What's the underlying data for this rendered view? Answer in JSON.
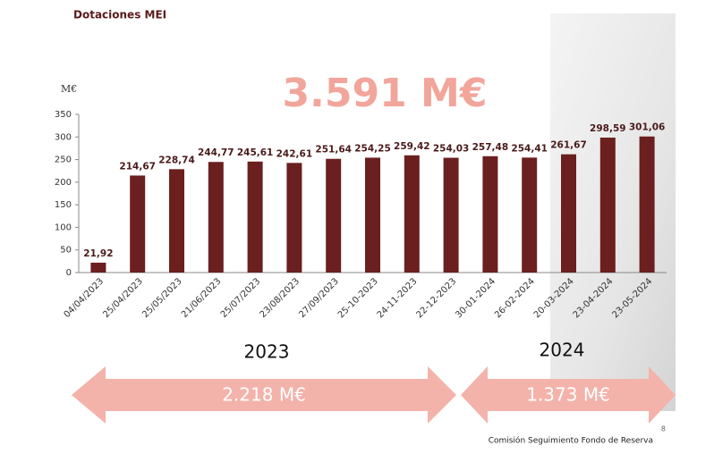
{
  "title": "Dotaciones MEI",
  "total": "3.591 M€",
  "chart_data": {
    "type": "bar",
    "ylabel": "M€",
    "categories": [
      "04/04/2023",
      "25/04/2023",
      "25/05/2023",
      "21/06/2023",
      "25/07/2023",
      "23/08/2023",
      "27/09/2023",
      "25-10-2023",
      "24-11-2023",
      "22-12-2023",
      "30-01-2024",
      "26-02-2024",
      "20-03-2024",
      "23-04-2024",
      "23-05-2024"
    ],
    "values": [
      21.92,
      214.67,
      228.74,
      244.77,
      245.61,
      242.61,
      251.64,
      254.25,
      259.42,
      254.03,
      257.48,
      254.41,
      261.67,
      298.59,
      301.06
    ],
    "value_labels": [
      "21,92",
      "214,67",
      "228,74",
      "244,77",
      "245,61",
      "242,61",
      "251,64",
      "254,25",
      "259,42",
      "254,03",
      "257,48",
      "254,41",
      "261,67",
      "298,59",
      "301,06"
    ],
    "color": "#6b1f1f",
    "ylim": [
      0,
      350
    ],
    "yticks": [
      0,
      50,
      100,
      150,
      200,
      250,
      300,
      350
    ],
    "grid": false
  },
  "periods": [
    {
      "year": "2023",
      "total": "2.218 M€"
    },
    {
      "year": "2024",
      "total": "1.373 M€"
    }
  ],
  "footer": "Comisión Seguimiento Fondo de Reserva",
  "page_number": "8"
}
